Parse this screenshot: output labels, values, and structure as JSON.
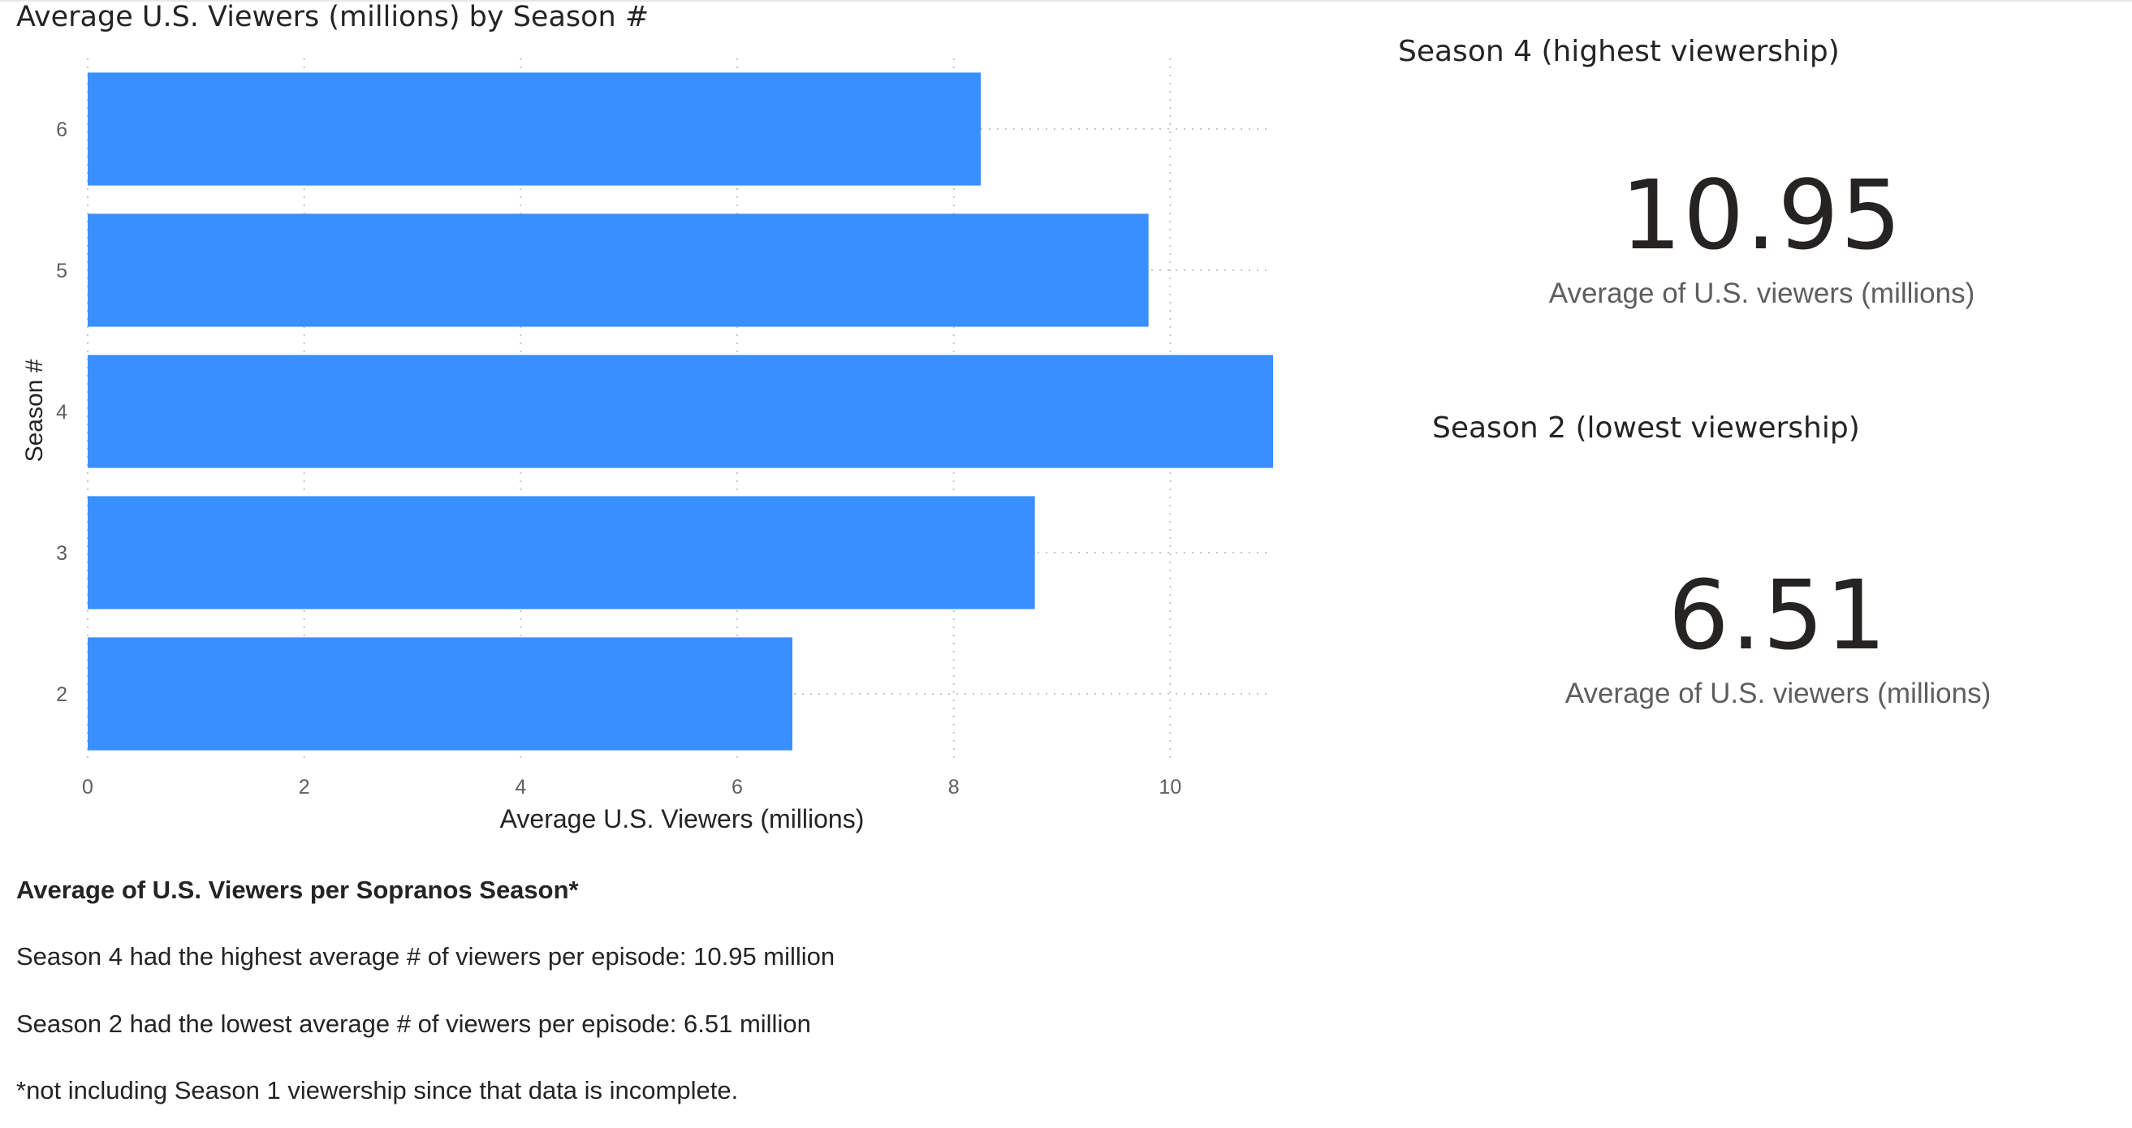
{
  "chart_data": {
    "type": "bar",
    "orientation": "horizontal",
    "title": "Average U.S. Viewers (millions) by Season #",
    "xlabel": "Average U.S. Viewers (millions)",
    "ylabel": "Season #",
    "categories": [
      "6",
      "5",
      "4",
      "3",
      "2"
    ],
    "values": [
      8.25,
      9.8,
      10.95,
      8.75,
      6.51
    ],
    "xlim": [
      0,
      10.95
    ],
    "xticks": [
      "0",
      "2",
      "4",
      "6",
      "8",
      "10"
    ],
    "grid": true,
    "bar_color": "#3a8ffe"
  },
  "cards": [
    {
      "heading": "Season 4 (highest viewership)",
      "value": "10.95",
      "label": "Average of U.S. viewers (millions)"
    },
    {
      "heading": "Season 2 (lowest viewership)",
      "value": "6.51",
      "label": "Average of U.S. viewers (millions)"
    }
  ],
  "notes": {
    "title": "Average of U.S. Viewers per Sopranos Season*",
    "line1": "Season 4 had the highest average # of viewers per episode: 10.95 million",
    "line2": "Season 2 had the lowest average # of viewers per episode: 6.51 million",
    "footnote": "*not including Season 1 viewership since that data is incomplete."
  }
}
